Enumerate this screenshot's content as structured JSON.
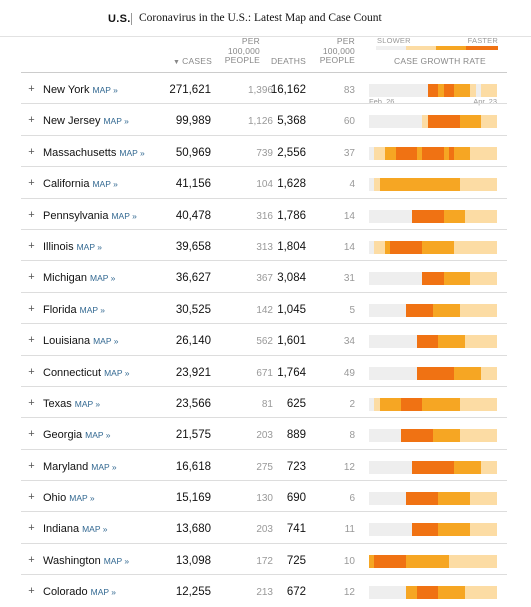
{
  "header": {
    "section": "U.S.",
    "title": "Coronavirus in the U.S.: Latest Map and Case Count"
  },
  "columns": {
    "cases": "Cases",
    "per_1": [
      "Per",
      "100,000",
      "People"
    ],
    "deaths": "Deaths",
    "per_2": [
      "Per",
      "100,000",
      "People"
    ],
    "growth": "Case growth rate"
  },
  "legend": {
    "slower": "Slower",
    "faster": "Faster"
  },
  "dates": {
    "start": "Feb. 26",
    "end": "Apr. 23"
  },
  "map_label": "MAP »",
  "colors": {
    "light": "#fcdca4",
    "mid": "#f6a623",
    "dark": "#f07213",
    "gray": "#eeeeee",
    "link": "#326891"
  },
  "rows": [
    {
      "state": "New York",
      "cases": "271,621",
      "per_cases": "1,396",
      "deaths": "16,162",
      "per_deaths": "83",
      "growth": "000000000003323322210111"
    },
    {
      "state": "New Jersey",
      "cases": "99,989",
      "per_cases": "1,126",
      "deaths": "5,368",
      "per_deaths": "60",
      "growth": "000000000013333332222111"
    },
    {
      "state": "Massachusetts",
      "cases": "50,969",
      "per_cases": "739",
      "deaths": "2,556",
      "per_deaths": "37",
      "growth": "011223333233332322211111"
    },
    {
      "state": "California",
      "cases": "41,156",
      "per_cases": "104",
      "deaths": "1,628",
      "per_deaths": "4",
      "growth": "012222222222222221111111"
    },
    {
      "state": "Pennsylvania",
      "cases": "40,478",
      "per_cases": "316",
      "deaths": "1,786",
      "per_deaths": "14",
      "growth": "000000003333332222111111"
    },
    {
      "state": "Illinois",
      "cases": "39,658",
      "per_cases": "313",
      "deaths": "1,804",
      "per_deaths": "14",
      "growth": "011233333322222211111111"
    },
    {
      "state": "Michigan",
      "cases": "36,627",
      "per_cases": "367",
      "deaths": "3,084",
      "per_deaths": "31",
      "growth": "000000000033332222211111"
    },
    {
      "state": "Florida",
      "cases": "30,525",
      "per_cases": "142",
      "deaths": "1,045",
      "per_deaths": "5",
      "growth": "000000033333222221111111"
    },
    {
      "state": "Louisiana",
      "cases": "26,140",
      "per_cases": "562",
      "deaths": "1,601",
      "per_deaths": "34",
      "growth": "000000000333322222111111"
    },
    {
      "state": "Connecticut",
      "cases": "23,921",
      "per_cases": "671",
      "deaths": "1,764",
      "per_deaths": "49",
      "growth": "000000000333333322222111"
    },
    {
      "state": "Texas",
      "cases": "23,566",
      "per_cases": "81",
      "deaths": "625",
      "per_deaths": "2",
      "growth": "012222333322222221111111"
    },
    {
      "state": "Georgia",
      "cases": "21,575",
      "per_cases": "203",
      "deaths": "889",
      "per_deaths": "8",
      "growth": "000000333333222221111111"
    },
    {
      "state": "Maryland",
      "cases": "16,618",
      "per_cases": "275",
      "deaths": "723",
      "per_deaths": "12",
      "growth": "000000003333333322222111"
    },
    {
      "state": "Ohio",
      "cases": "15,169",
      "per_cases": "130",
      "deaths": "690",
      "per_deaths": "6",
      "growth": "000000033333322222211111"
    },
    {
      "state": "Indiana",
      "cases": "13,680",
      "per_cases": "203",
      "deaths": "741",
      "per_deaths": "11",
      "growth": "000000003333322222211111"
    },
    {
      "state": "Washington",
      "cases": "13,098",
      "per_cases": "172",
      "deaths": "725",
      "per_deaths": "10",
      "growth": "233333322222222111111111"
    },
    {
      "state": "Colorado",
      "cases": "12,255",
      "per_cases": "213",
      "deaths": "672",
      "per_deaths": "12",
      "growth": "000000022333322222111111"
    }
  ]
}
